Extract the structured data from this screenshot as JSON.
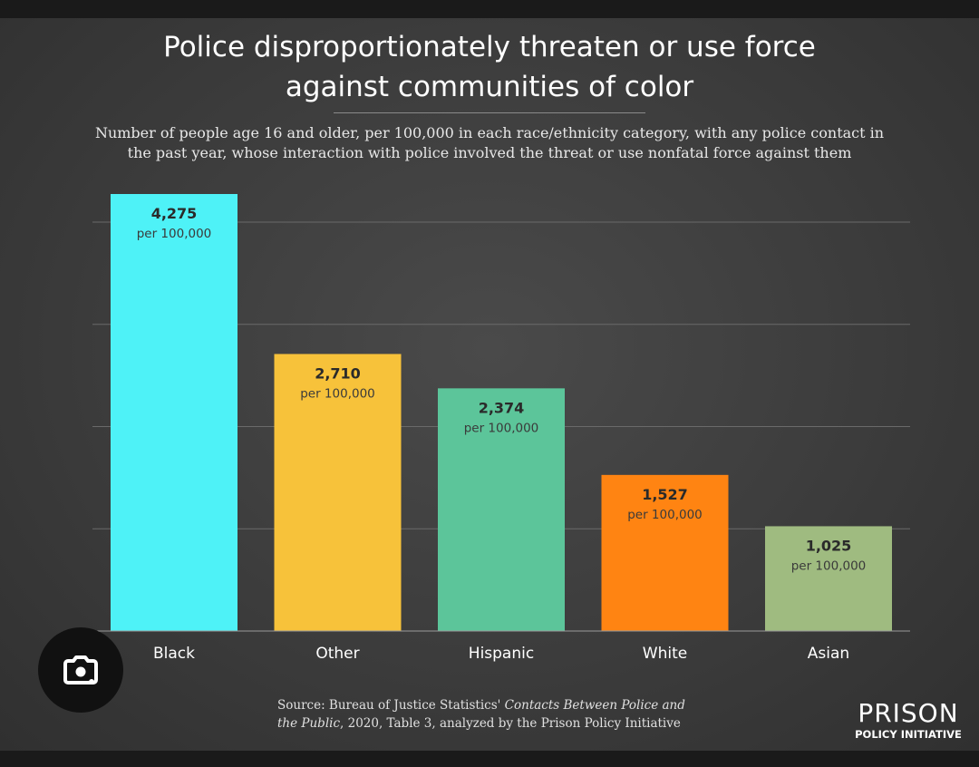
{
  "chart_data": {
    "type": "bar",
    "title": "Police disproportionately threaten or use force against communities of color",
    "title_lines": [
      "Police disproportionately threaten or use force",
      "against communities of color"
    ],
    "subtitle": "Number of people age 16 and older, per 100,000 in each race/ethnicity category, with any police contact in the past year, whose interaction with police involved the threat or use nonfatal force against them",
    "subtitle_lines": [
      "Number of people age 16 and older, per 100,000 in each race/ethnicity category, with any police contact in",
      "the past year, whose interaction with police involved the threat or use nonfatal force against them"
    ],
    "categories": [
      "Black",
      "Other",
      "Hispanic",
      "White",
      "Asian"
    ],
    "values": [
      4275,
      2710,
      2374,
      1527,
      1025
    ],
    "value_labels": [
      "4,275",
      "2,710",
      "2,374",
      "1,527",
      "1,025"
    ],
    "unit_label": "per 100,000",
    "colors": [
      "#4ef2f7",
      "#f7c23a",
      "#5cc59a",
      "#ff8412",
      "#9fbb80"
    ],
    "ylim": [
      0,
      4275
    ],
    "grid": true,
    "gridline_values": [
      1000,
      2000,
      3000,
      4000
    ],
    "xlabel": "",
    "ylabel": ""
  },
  "source": {
    "prefix": "Source: Bureau of Justice Statistics' ",
    "italic_1": "Contacts Between Police and",
    "italic_2": "the Public",
    "suffix": ", 2020, Table 3, analyzed by the Prison Policy Initiative"
  },
  "logo": {
    "word1": "PRISON",
    "word2": "POLICY INITIATIVE"
  },
  "lens_button": {
    "icon": "camera-search-icon"
  }
}
